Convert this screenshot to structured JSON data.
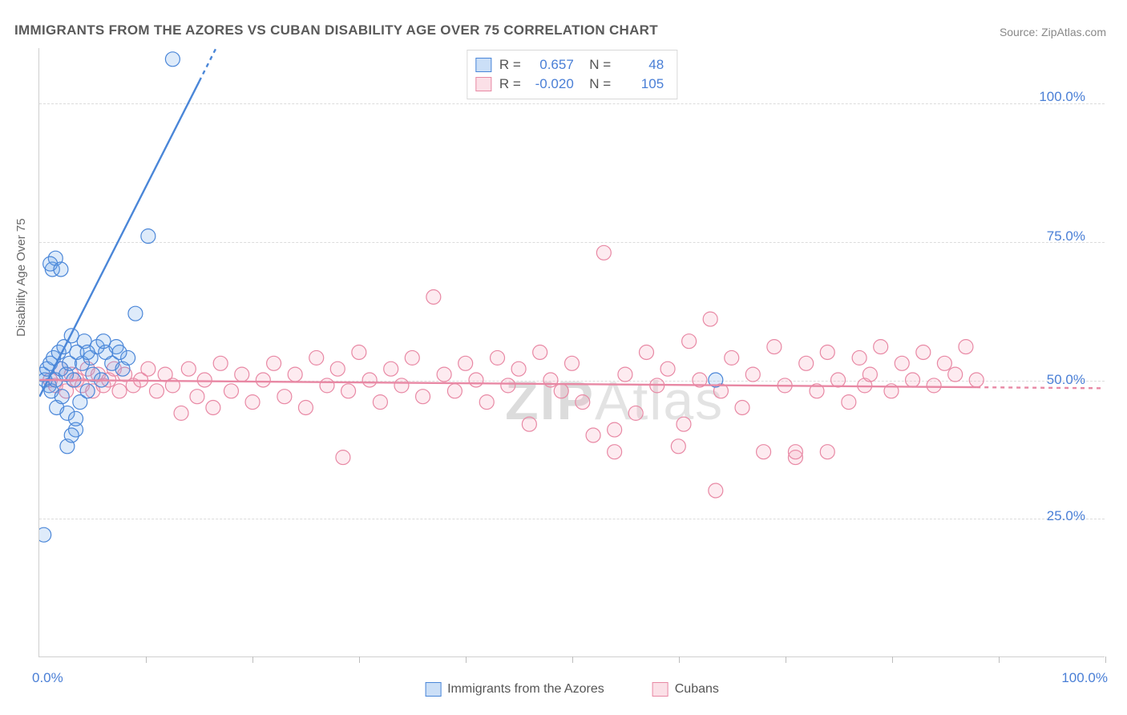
{
  "title": "IMMIGRANTS FROM THE AZORES VS CUBAN DISABILITY AGE OVER 75 CORRELATION CHART",
  "source": "Source: ZipAtlas.com",
  "ylabel": "Disability Age Over 75",
  "watermark": "ZIPAtlas",
  "chart": {
    "type": "scatter",
    "xlim": [
      0,
      100
    ],
    "ylim": [
      0,
      110
    ],
    "y_ticks": [
      25,
      50,
      75,
      100
    ],
    "y_tick_labels": [
      "25.0%",
      "50.0%",
      "75.0%",
      "100.0%"
    ],
    "x_tick_positions": [
      0,
      10,
      20,
      30,
      40,
      50,
      60,
      70,
      80,
      90,
      100
    ],
    "xmin_label": "0.0%",
    "xmax_label": "100.0%",
    "grid_color": "#dcdcdc",
    "axis_color": "#cfcfcf",
    "tick_label_color": "#4a7fd6",
    "background_color": "#ffffff",
    "marker_radius": 9,
    "marker_stroke_width": 1.2,
    "marker_fill_opacity": 0.22,
    "trend_stroke_width": 2.4
  },
  "series": [
    {
      "name": "Immigrants from the Azores",
      "color": "#6aa3e8",
      "stroke": "#4a86d8",
      "R": "0.657",
      "N": "48",
      "trend": {
        "y_at_x0": 47,
        "slope": 3.8,
        "solid_xmax": 15,
        "dashed_xmax": 18
      },
      "points": [
        [
          0.3,
          51
        ],
        [
          0.5,
          50
        ],
        [
          0.7,
          52
        ],
        [
          0.9,
          49
        ],
        [
          1.0,
          53
        ],
        [
          1.1,
          48
        ],
        [
          1.3,
          54
        ],
        [
          1.5,
          50
        ],
        [
          1.6,
          45
        ],
        [
          1.8,
          55
        ],
        [
          2.0,
          52
        ],
        [
          2.1,
          47
        ],
        [
          2.3,
          56
        ],
        [
          2.5,
          51
        ],
        [
          2.6,
          44
        ],
        [
          2.8,
          53
        ],
        [
          3.0,
          58
        ],
        [
          3.2,
          50
        ],
        [
          3.4,
          41
        ],
        [
          3.5,
          55
        ],
        [
          3.8,
          46
        ],
        [
          4.0,
          53
        ],
        [
          4.2,
          57
        ],
        [
          4.5,
          48
        ],
        [
          4.8,
          54
        ],
        [
          5.0,
          51
        ],
        [
          5.4,
          56
        ],
        [
          5.8,
          50
        ],
        [
          6.2,
          55
        ],
        [
          6.8,
          53
        ],
        [
          7.2,
          56
        ],
        [
          7.8,
          52
        ],
        [
          8.3,
          54
        ],
        [
          9.0,
          62
        ],
        [
          10.2,
          76
        ],
        [
          2.6,
          38
        ],
        [
          3.0,
          40
        ],
        [
          3.4,
          43
        ],
        [
          1.2,
          70
        ],
        [
          1.5,
          72
        ],
        [
          1.0,
          71
        ],
        [
          2.0,
          70
        ],
        [
          12.5,
          108
        ],
        [
          0.4,
          22
        ],
        [
          63.5,
          50
        ],
        [
          4.5,
          55
        ],
        [
          6.0,
          57
        ],
        [
          7.5,
          55
        ]
      ]
    },
    {
      "name": "Cubans",
      "color": "#f4a6bb",
      "stroke": "#e888a4",
      "R": "-0.020",
      "N": "105",
      "trend": {
        "y_at_x0": 50,
        "slope": -0.015,
        "solid_xmax": 88,
        "dashed_xmax": 100
      },
      "points": [
        [
          1,
          50
        ],
        [
          1.5,
          49
        ],
        [
          2,
          52
        ],
        [
          2.5,
          48
        ],
        [
          3,
          51
        ],
        [
          3.5,
          50
        ],
        [
          4,
          49
        ],
        [
          4.5,
          52
        ],
        [
          5,
          48
        ],
        [
          5.5,
          51
        ],
        [
          6,
          49
        ],
        [
          6.5,
          50
        ],
        [
          7,
          52
        ],
        [
          7.5,
          48
        ],
        [
          8,
          51
        ],
        [
          8.8,
          49
        ],
        [
          9.5,
          50
        ],
        [
          10.2,
          52
        ],
        [
          11,
          48
        ],
        [
          11.8,
          51
        ],
        [
          12.5,
          49
        ],
        [
          13.3,
          44
        ],
        [
          14,
          52
        ],
        [
          14.8,
          47
        ],
        [
          15.5,
          50
        ],
        [
          16.3,
          45
        ],
        [
          17,
          53
        ],
        [
          18,
          48
        ],
        [
          19,
          51
        ],
        [
          20,
          46
        ],
        [
          21,
          50
        ],
        [
          22,
          53
        ],
        [
          23,
          47
        ],
        [
          24,
          51
        ],
        [
          25,
          45
        ],
        [
          26,
          54
        ],
        [
          27,
          49
        ],
        [
          28,
          52
        ],
        [
          28.5,
          36
        ],
        [
          29,
          48
        ],
        [
          30,
          55
        ],
        [
          31,
          50
        ],
        [
          32,
          46
        ],
        [
          33,
          52
        ],
        [
          34,
          49
        ],
        [
          35,
          54
        ],
        [
          36,
          47
        ],
        [
          37,
          65
        ],
        [
          38,
          51
        ],
        [
          39,
          48
        ],
        [
          40,
          53
        ],
        [
          41,
          50
        ],
        [
          42,
          46
        ],
        [
          43,
          54
        ],
        [
          44,
          49
        ],
        [
          45,
          52
        ],
        [
          46,
          42
        ],
        [
          47,
          55
        ],
        [
          48,
          50
        ],
        [
          49,
          48
        ],
        [
          50,
          53
        ],
        [
          51,
          46
        ],
        [
          52,
          40
        ],
        [
          53,
          73
        ],
        [
          54,
          37
        ],
        [
          55,
          51
        ],
        [
          56,
          44
        ],
        [
          57,
          55
        ],
        [
          58,
          49
        ],
        [
          59,
          52
        ],
        [
          60,
          38
        ],
        [
          60.5,
          42
        ],
        [
          61,
          57
        ],
        [
          62,
          50
        ],
        [
          63,
          61
        ],
        [
          63.5,
          30
        ],
        [
          64,
          48
        ],
        [
          65,
          54
        ],
        [
          66,
          45
        ],
        [
          67,
          51
        ],
        [
          68,
          37
        ],
        [
          69,
          56
        ],
        [
          70,
          49
        ],
        [
          71,
          36
        ],
        [
          72,
          53
        ],
        [
          73,
          48
        ],
        [
          74,
          55
        ],
        [
          75,
          50
        ],
        [
          76,
          46
        ],
        [
          77,
          54
        ],
        [
          77.5,
          49
        ],
        [
          78,
          51
        ],
        [
          79,
          56
        ],
        [
          80,
          48
        ],
        [
          81,
          53
        ],
        [
          82,
          50
        ],
        [
          83,
          55
        ],
        [
          84,
          49
        ],
        [
          85,
          53
        ],
        [
          86,
          51
        ],
        [
          87,
          56
        ],
        [
          88,
          50
        ],
        [
          71,
          37
        ],
        [
          74,
          37
        ],
        [
          54,
          41
        ]
      ]
    }
  ],
  "legend": {
    "label_a": "Immigrants from the Azores",
    "label_b": "Cubans"
  }
}
